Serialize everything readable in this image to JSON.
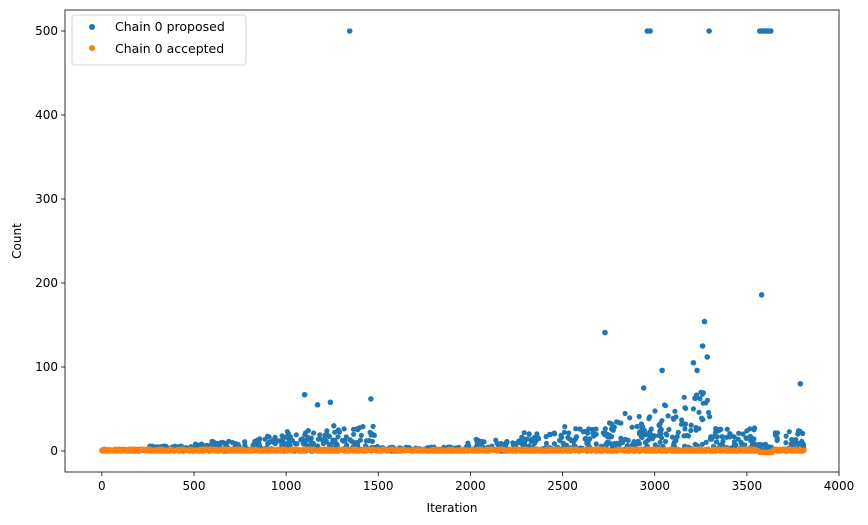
{
  "chart_data": {
    "type": "scatter",
    "title": "",
    "xlabel": "Iteration",
    "ylabel": "Count",
    "xlim": [
      -200,
      4000
    ],
    "ylim": [
      -25,
      525
    ],
    "xticks": [
      0,
      500,
      1000,
      1500,
      2000,
      2500,
      3000,
      3500,
      4000
    ],
    "yticks": [
      0,
      100,
      200,
      300,
      400,
      500
    ],
    "grid": false,
    "legend_position": "upper-left",
    "series": [
      {
        "name": "Chain 0 proposed",
        "color": "#1f77b4",
        "x_range": [
          0,
          3810
        ],
        "bulk": [
          {
            "x_range": [
              0,
              250
            ],
            "peak": 2
          },
          {
            "x_range": [
              250,
              500
            ],
            "peak": 6
          },
          {
            "x_range": [
              500,
              800
            ],
            "peak": 12
          },
          {
            "x_range": [
              800,
              1000
            ],
            "peak": 18
          },
          {
            "x_range": [
              1000,
              1200
            ],
            "peak": 28
          },
          {
            "x_range": [
              1200,
              1480
            ],
            "peak": 32
          },
          {
            "x_range": [
              1480,
              1550
            ],
            "peak": 6
          },
          {
            "x_range": [
              1550,
              1950
            ],
            "peak": 5
          },
          {
            "x_range": [
              1950,
              2250
            ],
            "peak": 14
          },
          {
            "x_range": [
              2250,
              2500
            ],
            "peak": 22
          },
          {
            "x_range": [
              2500,
              2750
            ],
            "peak": 30
          },
          {
            "x_range": [
              2750,
              2950
            ],
            "peak": 45
          },
          {
            "x_range": [
              2950,
              3150
            ],
            "peak": 55
          },
          {
            "x_range": [
              3150,
              3300
            ],
            "peak": 70
          },
          {
            "x_range": [
              3300,
              3550
            ],
            "peak": 28
          },
          {
            "x_range": [
              3550,
              3650
            ],
            "peak": 8
          },
          {
            "x_range": [
              3650,
              3810
            ],
            "peak": 30
          }
        ],
        "highlights": [
          {
            "x": 1100,
            "y": 67
          },
          {
            "x": 1170,
            "y": 55
          },
          {
            "x": 1240,
            "y": 58
          },
          {
            "x": 1460,
            "y": 62
          },
          {
            "x": 2730,
            "y": 141
          },
          {
            "x": 2940,
            "y": 75
          },
          {
            "x": 3040,
            "y": 96
          },
          {
            "x": 3210,
            "y": 105
          },
          {
            "x": 3230,
            "y": 96
          },
          {
            "x": 3260,
            "y": 125
          },
          {
            "x": 3270,
            "y": 154
          },
          {
            "x": 3285,
            "y": 112
          },
          {
            "x": 3580,
            "y": 186
          },
          {
            "x": 3790,
            "y": 80
          },
          {
            "x": 1345,
            "y": 500
          },
          {
            "x": 2960,
            "y": 500
          },
          {
            "x": 2975,
            "y": 500
          },
          {
            "x": 3295,
            "y": 500
          },
          {
            "x": 3570,
            "y": 500
          },
          {
            "x": 3580,
            "y": 500
          },
          {
            "x": 3590,
            "y": 500
          },
          {
            "x": 3600,
            "y": 500
          },
          {
            "x": 3610,
            "y": 500
          },
          {
            "x": 3620,
            "y": 500
          },
          {
            "x": 3630,
            "y": 500
          }
        ]
      },
      {
        "name": "Chain 0 accepted",
        "color": "#ff7f0e",
        "x_range": [
          0,
          3810
        ],
        "y_values": [
          0,
          1,
          2
        ],
        "notes_gap_below_zero": [
          3570,
          3640
        ]
      }
    ]
  }
}
